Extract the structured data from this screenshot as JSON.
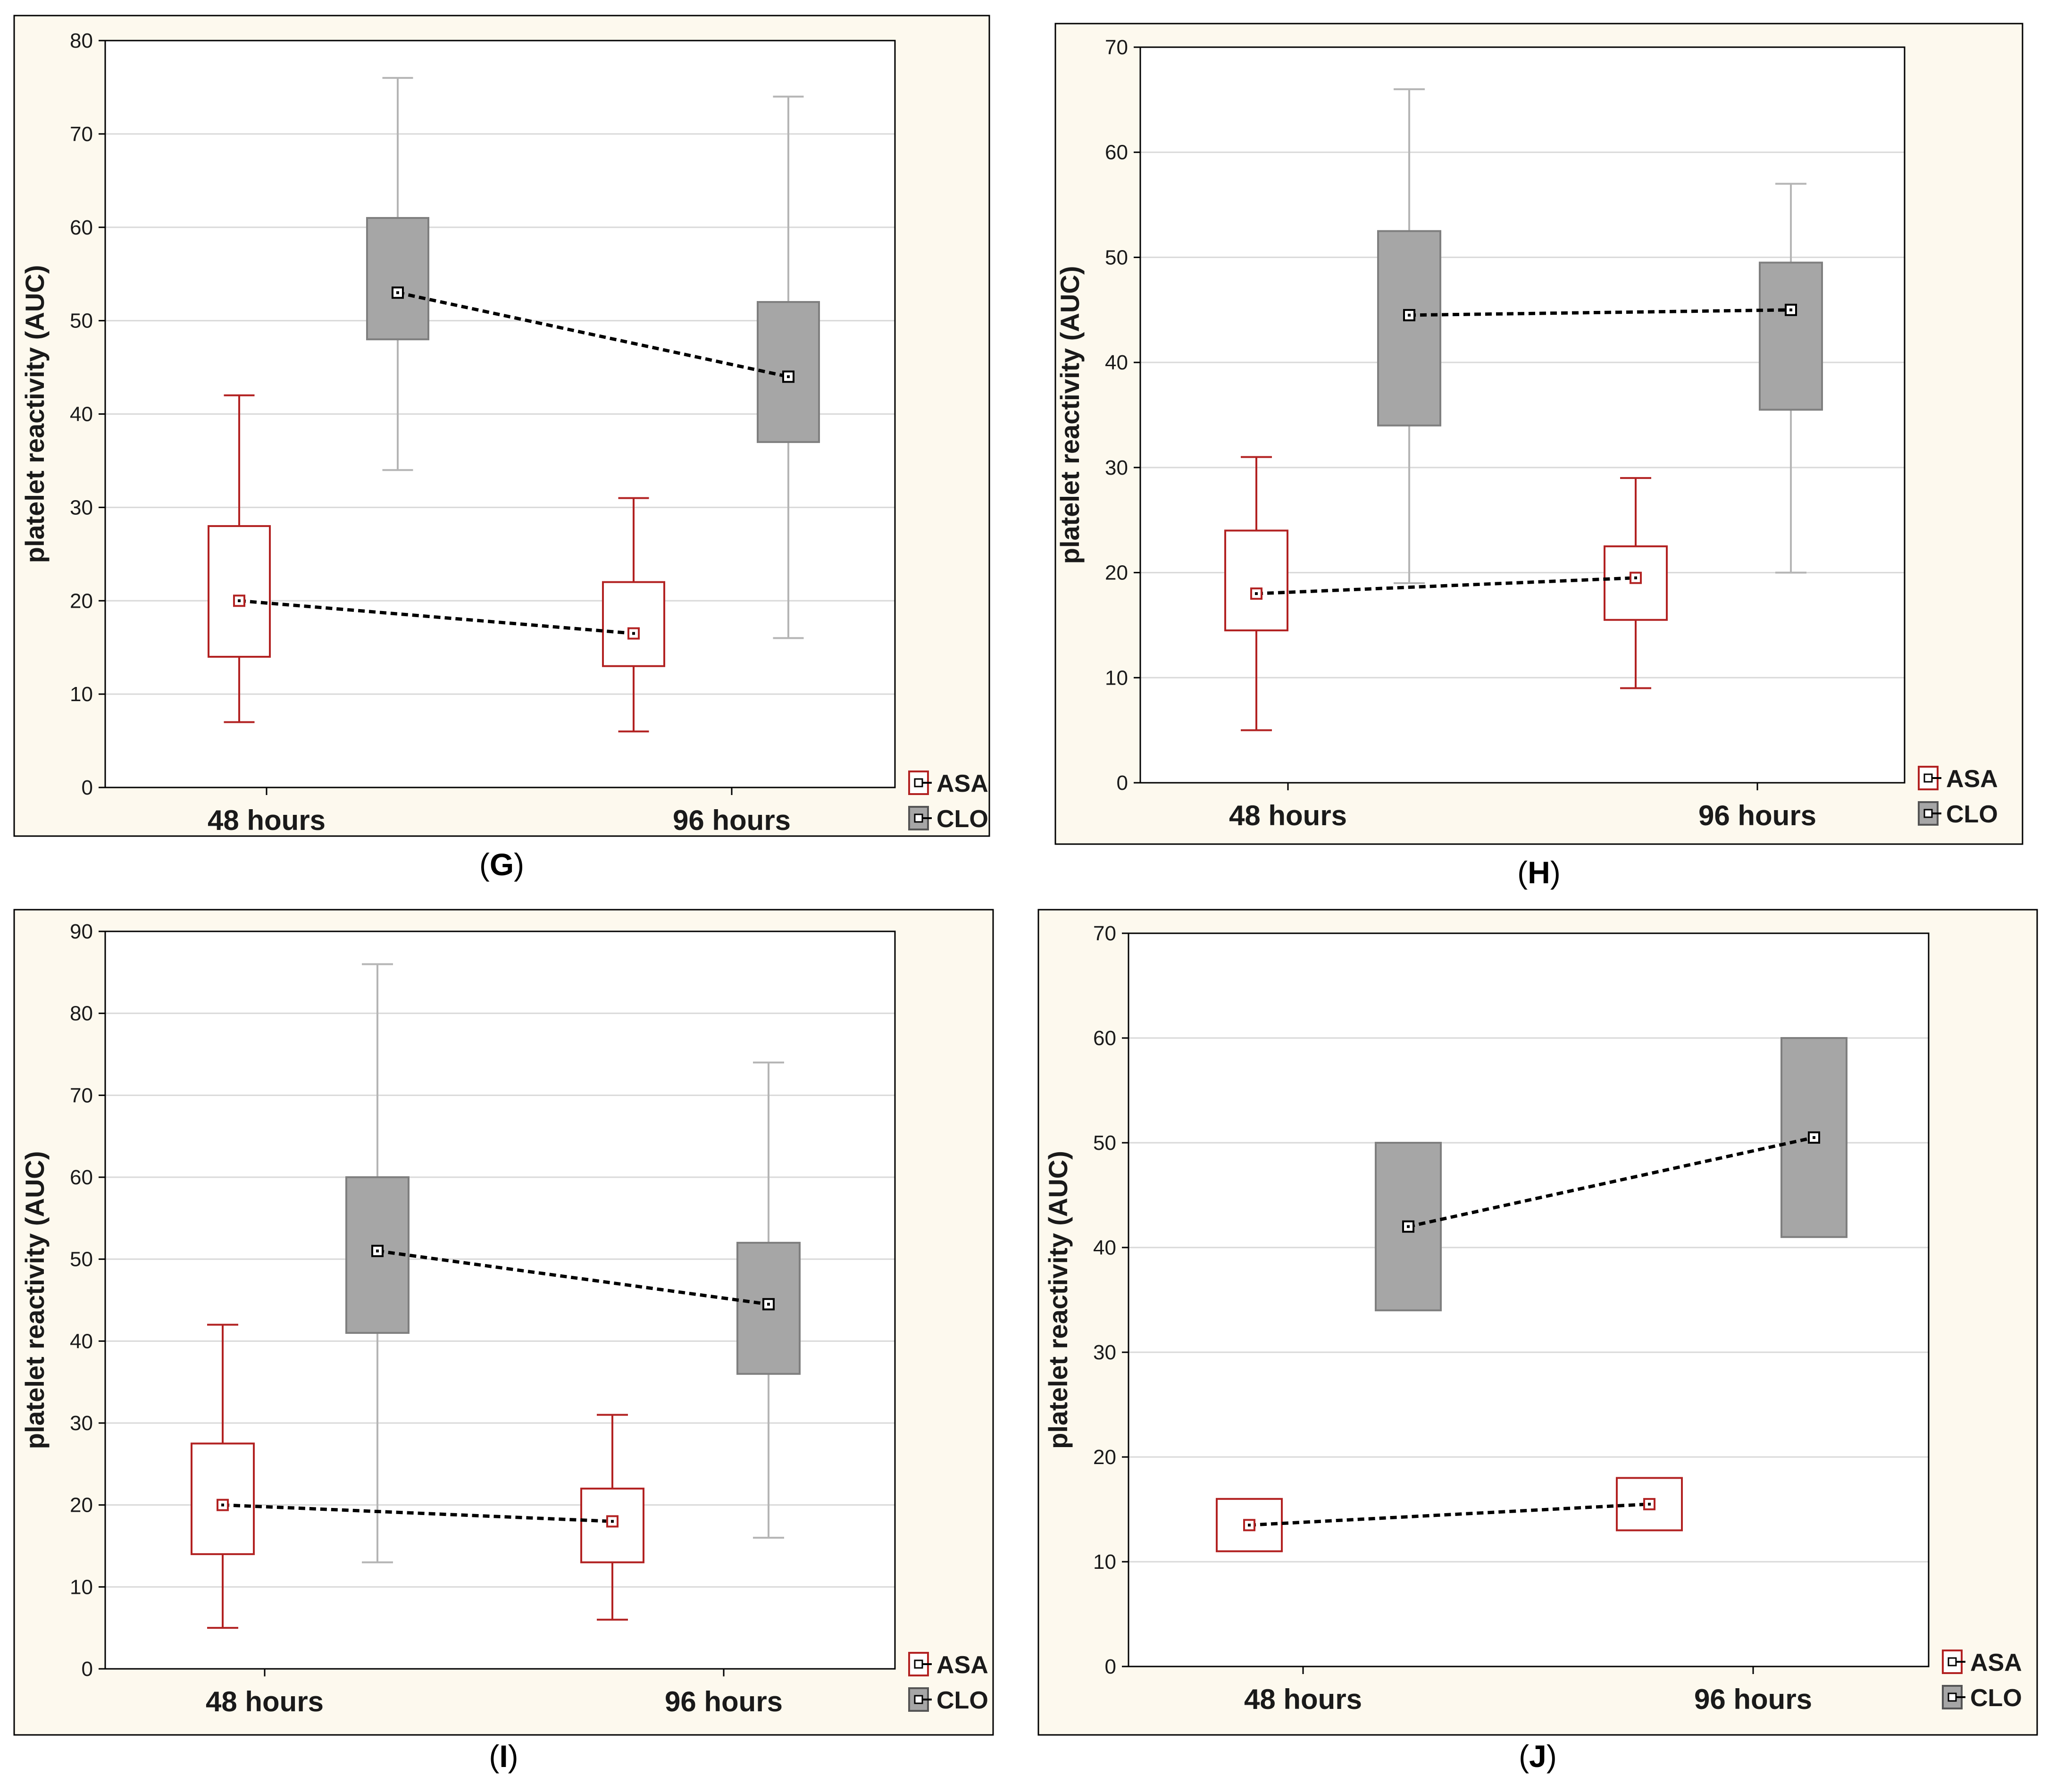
{
  "colors": {
    "panel_bg": "#fdf9ee",
    "plot_bg": "#ffffff",
    "grid": "#d9d9d9",
    "asa": "#b22222",
    "clo_box_fill": "#a6a6a6",
    "clo_box_stroke": "#7f7f7f",
    "clo_whisker": "#b5b5b5",
    "trend_line": "#000000",
    "text": "#1a1a1a"
  },
  "legend": {
    "asa": "ASA",
    "clo": "CLO"
  },
  "chart_data": [
    {
      "panel": "(G)",
      "type": "box",
      "ylabel": "platelet reactivity (AUC)",
      "categories": [
        "48 hours",
        "96 hours"
      ],
      "ylim": [
        0,
        80
      ],
      "yticks": [
        0,
        10,
        20,
        30,
        40,
        50,
        60,
        70,
        80
      ],
      "grid": true,
      "legend_position": "bottom-right",
      "series": [
        {
          "name": "ASA",
          "boxes": [
            {
              "min": 7,
              "q1": 14,
              "mid": 20,
              "q3": 28,
              "max": 42
            },
            {
              "min": 6,
              "q1": 13,
              "mid": 16.5,
              "q3": 22,
              "max": 31
            }
          ]
        },
        {
          "name": "CLO",
          "boxes": [
            {
              "min": 34,
              "q1": 48,
              "mid": 53,
              "q3": 61,
              "max": 76
            },
            {
              "min": 16,
              "q1": 37,
              "mid": 44,
              "q3": 52,
              "max": 74
            }
          ]
        }
      ]
    },
    {
      "panel": "(H)",
      "type": "box",
      "ylabel": "platelet reactivity (AUC)",
      "categories": [
        "48 hours",
        "96 hours"
      ],
      "ylim": [
        0,
        70
      ],
      "yticks": [
        0,
        10,
        20,
        30,
        40,
        50,
        60,
        70
      ],
      "grid": true,
      "legend_position": "bottom-right",
      "series": [
        {
          "name": "ASA",
          "boxes": [
            {
              "min": 5,
              "q1": 14.5,
              "mid": 18,
              "q3": 24,
              "max": 31
            },
            {
              "min": 9,
              "q1": 15.5,
              "mid": 19.5,
              "q3": 22.5,
              "max": 29
            }
          ]
        },
        {
          "name": "CLO",
          "boxes": [
            {
              "min": 19,
              "q1": 34,
              "mid": 44.5,
              "q3": 52.5,
              "max": 66
            },
            {
              "min": 20,
              "q1": 35.5,
              "mid": 45,
              "q3": 49.5,
              "max": 57
            }
          ]
        }
      ]
    },
    {
      "panel": "(I)",
      "type": "box",
      "ylabel": "platelet reactivity (AUC)",
      "categories": [
        "48 hours",
        "96 hours"
      ],
      "ylim": [
        0,
        90
      ],
      "yticks": [
        0,
        10,
        20,
        30,
        40,
        50,
        60,
        70,
        80,
        90
      ],
      "grid": true,
      "legend_position": "bottom-right",
      "series": [
        {
          "name": "ASA",
          "boxes": [
            {
              "min": 5,
              "q1": 14,
              "mid": 20,
              "q3": 27.5,
              "max": 42
            },
            {
              "min": 6,
              "q1": 13,
              "mid": 18,
              "q3": 22,
              "max": 31
            }
          ]
        },
        {
          "name": "CLO",
          "boxes": [
            {
              "min": 13,
              "q1": 41,
              "mid": 51,
              "q3": 60,
              "max": 86
            },
            {
              "min": 16,
              "q1": 36,
              "mid": 44.5,
              "q3": 52,
              "max": 74
            }
          ]
        }
      ]
    },
    {
      "panel": "(J)",
      "type": "box",
      "ylabel": "platelet reactivity (AUC)",
      "categories": [
        "48 hours",
        "96 hours"
      ],
      "ylim": [
        0,
        70
      ],
      "yticks": [
        0,
        10,
        20,
        30,
        40,
        50,
        60,
        70
      ],
      "grid": true,
      "legend_position": "bottom-right",
      "series": [
        {
          "name": "ASA",
          "boxes": [
            {
              "min": 11,
              "q1": 11,
              "mid": 13.5,
              "q3": 16,
              "max": 16
            },
            {
              "min": 13,
              "q1": 13,
              "mid": 15.5,
              "q3": 18,
              "max": 18
            }
          ]
        },
        {
          "name": "CLO",
          "boxes": [
            {
              "min": 34,
              "q1": 34,
              "mid": 42,
              "q3": 50,
              "max": 50
            },
            {
              "min": 41,
              "q1": 41,
              "mid": 50.5,
              "q3": 60,
              "max": 60
            }
          ]
        }
      ]
    }
  ]
}
